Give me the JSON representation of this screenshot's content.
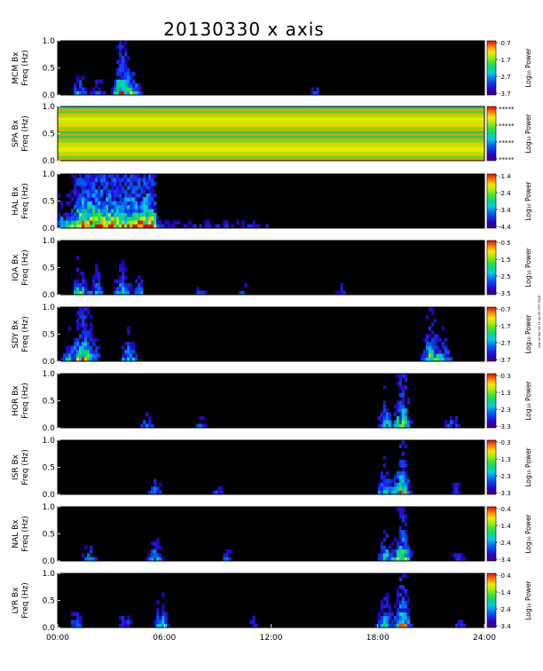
{
  "chart_data": {
    "type": "heatmap",
    "title": "20130330 x axis",
    "xlabel": "",
    "x_ticks": [
      "00:00",
      "06:00",
      "12:00",
      "18:00",
      "24:00"
    ],
    "xlim": [
      0,
      24
    ],
    "side_note": "ssw idl Sat 30 11:44:50 GST 2018",
    "colorbar_label": "Log₁₀ Power",
    "panels": [
      {
        "station": "MCM Bx",
        "ylabel": "Freq (Hz)",
        "ylim": [
          0,
          1
        ],
        "y_ticks": [
          "0.0",
          "0.5",
          "1.0"
        ],
        "cbar_ticks": [
          "-0.7",
          "-1.7",
          "-2.7",
          "-3.7"
        ],
        "cbar_range": [
          -3.7,
          -0.7
        ]
      },
      {
        "station": "SPA Bx",
        "ylabel": "Freq (Hz)",
        "ylim": [
          0,
          1
        ],
        "y_ticks": [
          "0.0",
          "0.5",
          "1.0"
        ],
        "cbar_ticks": [
          "*****",
          "*****",
          "*****",
          "*****"
        ],
        "cbar_range": null
      },
      {
        "station": "HAL Bx",
        "ylabel": "Freq (Hz)",
        "ylim": [
          0,
          1
        ],
        "y_ticks": [
          "0.0",
          "0.5",
          "1.0"
        ],
        "cbar_ticks": [
          "-1.4",
          "-2.4",
          "-3.4",
          "-4.4"
        ],
        "cbar_range": [
          -4.4,
          -1.4
        ]
      },
      {
        "station": "IQA Bx",
        "ylabel": "Freq (Hz)",
        "ylim": [
          0,
          1
        ],
        "y_ticks": [
          "0.0",
          "0.5",
          "1.0"
        ],
        "cbar_ticks": [
          "-0.5",
          "-1.5",
          "-2.5",
          "-3.5"
        ],
        "cbar_range": [
          -3.5,
          -0.5
        ]
      },
      {
        "station": "SDY Bx",
        "ylabel": "Freq (Hz)",
        "ylim": [
          0,
          1
        ],
        "y_ticks": [
          "0.0",
          "0.5",
          "1.0"
        ],
        "cbar_ticks": [
          "-0.7",
          "-1.7",
          "-2.7",
          "-3.7"
        ],
        "cbar_range": [
          -3.7,
          -0.7
        ]
      },
      {
        "station": "HOR Bx",
        "ylabel": "Freq (Hz)",
        "ylim": [
          0,
          1
        ],
        "y_ticks": [
          "0.0",
          "0.5",
          "1.0"
        ],
        "cbar_ticks": [
          "-0.3",
          "-1.3",
          "-2.3",
          "-3.3"
        ],
        "cbar_range": [
          -3.3,
          -0.3
        ]
      },
      {
        "station": "ISR Bx",
        "ylabel": "Freq (Hz)",
        "ylim": [
          0,
          1
        ],
        "y_ticks": [
          "0.0",
          "0.5",
          "1.0"
        ],
        "cbar_ticks": [
          "-0.3",
          "-1.3",
          "-2.3",
          "-3.3"
        ],
        "cbar_range": [
          -3.3,
          -0.3
        ]
      },
      {
        "station": "NAL Bx",
        "ylabel": "Freq (Hz)",
        "ylim": [
          0,
          1
        ],
        "y_ticks": [
          "0.0",
          "0.5",
          "1.0"
        ],
        "cbar_ticks": [
          "-0.4",
          "-1.4",
          "-2.4",
          "-3.4"
        ],
        "cbar_range": [
          -3.4,
          -0.4
        ]
      },
      {
        "station": "LYR Bx",
        "ylabel": "Freq (Hz)",
        "ylim": [
          0,
          1
        ],
        "y_ticks": [
          "0.0",
          "0.5",
          "1.0"
        ],
        "cbar_ticks": [
          "-0.4",
          "-1.4",
          "-2.4",
          "-3.4"
        ],
        "cbar_range": [
          -3.4,
          -0.4
        ]
      }
    ]
  }
}
